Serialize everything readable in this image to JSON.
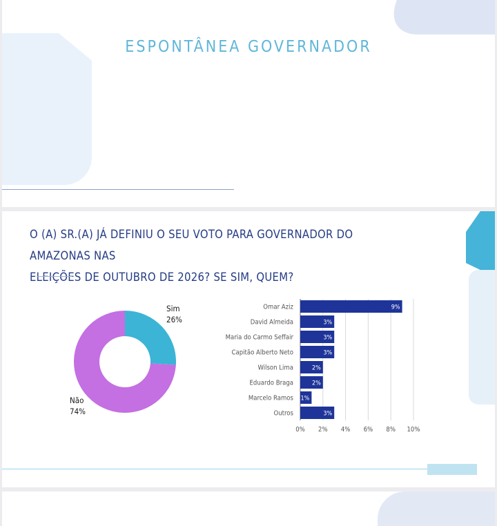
{
  "top_slide": {
    "title": "ESPONTÂNEA GOVERNADOR"
  },
  "question": {
    "line1": "O (A) SR.(A) JÁ DEFINIU O SEU VOTO PARA GOVERNADOR DO AMAZONAS NAS",
    "line2": "ELEIÇÕES DE OUTUBRO DE 2026? SE SIM, QUEM?"
  },
  "colors": {
    "bar": "#1e3499",
    "sim": "#3cb4d6",
    "nao": "#c46fe2",
    "title_blue": "#243c84",
    "accent_cyan": "#5fb6d9"
  },
  "chart_data": [
    {
      "type": "pie",
      "variant": "donut",
      "slices": [
        {
          "label": "Sim",
          "value": 26,
          "value_label": "26%",
          "color": "#3cb4d6"
        },
        {
          "label": "Não",
          "value": 74,
          "value_label": "74%",
          "color": "#c46fe2"
        }
      ]
    },
    {
      "type": "bar",
      "orientation": "horizontal",
      "categories": [
        "Omar Aziz",
        "David Almeida",
        "Maria do Carmo Seffair",
        "Capitão Alberto Neto",
        "Wilson Lima",
        "Eduardo Braga",
        "Marcelo Ramos",
        "Outros"
      ],
      "values": [
        9,
        3,
        3,
        3,
        2,
        2,
        1,
        3
      ],
      "value_labels": [
        "9%",
        "3%",
        "3%",
        "3%",
        "2%",
        "2%",
        "1%",
        "3%"
      ],
      "xlim": [
        0,
        10
      ],
      "xticks": [
        0,
        2,
        4,
        6,
        8,
        10
      ],
      "xtick_labels": [
        "0%",
        "2%",
        "4%",
        "6%",
        "8%",
        "10%"
      ],
      "grid": "vertical",
      "color": "#1e3499"
    }
  ]
}
